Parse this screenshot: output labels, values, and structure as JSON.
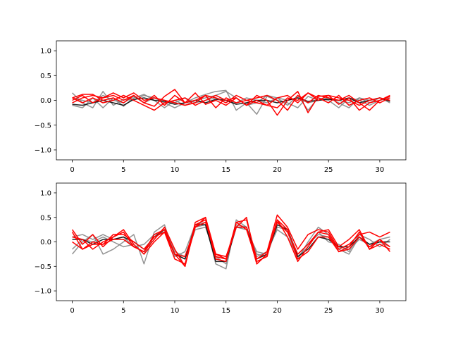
{
  "colors": {
    "gray": "#808080",
    "dark": "#000000",
    "red": "#ff0000",
    "axis": "#000000",
    "background": "#ffffff"
  },
  "chart_data": [
    {
      "type": "line",
      "xlim": [
        -1.55,
        32.55
      ],
      "ylim": [
        -1.2,
        1.2
      ],
      "xticks": [
        0,
        5,
        10,
        15,
        20,
        25,
        30
      ],
      "xtick_labels": [
        "0",
        "5",
        "10",
        "15",
        "20",
        "25",
        "30"
      ],
      "yticks": [
        1.0,
        0.5,
        0.0,
        -0.5,
        -1.0
      ],
      "ytick_labels": [
        "1.0",
        "0.5",
        "0.0",
        "−0.5",
        "−1.0"
      ],
      "grid": false,
      "x": [
        0,
        1,
        2,
        3,
        4,
        5,
        6,
        7,
        8,
        9,
        10,
        11,
        12,
        13,
        14,
        15,
        16,
        17,
        18,
        19,
        20,
        21,
        22,
        23,
        24,
        25,
        26,
        27,
        28,
        29,
        30,
        31
      ],
      "series": [
        {
          "color": "gray",
          "values": [
            0.15,
            -0.05,
            -0.15,
            0.18,
            -0.1,
            0.02,
            0.0,
            0.1,
            0.05,
            -0.05,
            -0.15,
            -0.05,
            0.05,
            0.12,
            0.18,
            0.2,
            -0.2,
            -0.05,
            -0.28,
            0.08,
            0.0,
            -0.05,
            -0.15,
            0.08,
            0.0,
            0.05,
            -0.05,
            -0.15,
            0.05,
            -0.05,
            0.05,
            -0.05
          ]
        },
        {
          "color": "gray",
          "values": [
            -0.1,
            -0.15,
            0.05,
            -0.15,
            0.05,
            -0.12,
            0.05,
            0.12,
            0.0,
            -0.15,
            0.0,
            -0.1,
            0.0,
            0.05,
            0.1,
            0.18,
            0.05,
            -0.1,
            -0.05,
            0.1,
            0.05,
            -0.1,
            0.1,
            -0.2,
            0.05,
            0.0,
            -0.15,
            0.05,
            0.0,
            -0.1,
            0.0,
            0.05
          ]
        },
        {
          "color": "gray",
          "values": [
            0.05,
            0.0,
            -0.05,
            0.1,
            0.0,
            -0.05,
            0.08,
            -0.05,
            0.05,
            0.0,
            -0.05,
            0.05,
            -0.05,
            0.0,
            0.05,
            0.0,
            -0.05,
            0.05,
            0.0,
            -0.05,
            0.05,
            0.0,
            0.05,
            -0.05,
            0.0,
            0.05,
            0.0,
            -0.05,
            0.05,
            0.0,
            0.05,
            0.0
          ]
        },
        {
          "color": "dark",
          "values": [
            -0.08,
            -0.1,
            -0.05,
            0.0,
            -0.05,
            -0.1,
            0.02,
            0.05,
            0.0,
            -0.02,
            -0.08,
            -0.05,
            0.0,
            -0.05,
            0.02,
            0.0,
            -0.08,
            -0.05,
            0.0,
            0.0,
            -0.05,
            0.0,
            0.05,
            -0.02,
            0.0,
            0.02,
            0.0,
            0.05,
            -0.05,
            0.0,
            0.05,
            -0.02
          ]
        },
        {
          "color": "red",
          "values": [
            0.05,
            0.12,
            0.12,
            0.0,
            0.05,
            -0.05,
            0.1,
            -0.05,
            -0.12,
            0.08,
            0.22,
            -0.05,
            0.15,
            -0.08,
            0.0,
            -0.1,
            0.05,
            -0.1,
            0.1,
            0.0,
            -0.3,
            0.0,
            0.18,
            -0.25,
            0.08,
            0.1,
            -0.08,
            0.05,
            -0.2,
            -0.05,
            0.0,
            0.08
          ]
        },
        {
          "color": "red",
          "values": [
            0.0,
            0.1,
            -0.05,
            0.05,
            0.1,
            0.0,
            0.1,
            -0.05,
            0.1,
            -0.1,
            0.1,
            -0.05,
            0.0,
            0.1,
            0.05,
            -0.05,
            0.1,
            0.0,
            0.05,
            0.1,
            0.0,
            -0.2,
            0.1,
            -0.05,
            0.1,
            0.05,
            0.0,
            0.1,
            -0.05,
            -0.2,
            0.0,
            0.1
          ]
        },
        {
          "color": "red",
          "values": [
            -0.05,
            0.05,
            0.1,
            0.05,
            0.15,
            0.05,
            0.15,
            0.0,
            0.05,
            0.0,
            -0.05,
            -0.1,
            -0.05,
            0.1,
            -0.15,
            0.05,
            -0.05,
            0.0,
            -0.05,
            -0.1,
            0.05,
            0.1,
            -0.05,
            0.15,
            0.0,
            0.1,
            0.05,
            0.0,
            -0.1,
            0.0,
            0.05,
            0.0
          ]
        },
        {
          "color": "red",
          "values": [
            0.05,
            -0.05,
            0.05,
            -0.05,
            0.0,
            0.1,
            0.0,
            -0.1,
            -0.2,
            -0.05,
            0.0,
            0.05,
            -0.1,
            0.0,
            0.1,
            0.0,
            0.05,
            -0.1,
            0.0,
            -0.1,
            -0.15,
            0.05,
            0.0,
            0.15,
            0.05,
            -0.05,
            0.1,
            -0.1,
            0.0,
            0.05,
            -0.05,
            0.05
          ]
        }
      ]
    },
    {
      "type": "line",
      "xlim": [
        -1.55,
        32.55
      ],
      "ylim": [
        -1.2,
        1.2
      ],
      "xticks": [
        0,
        5,
        10,
        15,
        20,
        25,
        30
      ],
      "xtick_labels": [
        "0",
        "5",
        "10",
        "15",
        "20",
        "25",
        "30"
      ],
      "yticks": [
        1.0,
        0.5,
        0.0,
        -0.5,
        -1.0
      ],
      "ytick_labels": [
        "1.0",
        "0.5",
        "0.0",
        "−0.5",
        "−1.0"
      ],
      "grid": false,
      "x": [
        0,
        1,
        2,
        3,
        4,
        5,
        6,
        7,
        8,
        9,
        10,
        11,
        12,
        13,
        14,
        15,
        16,
        17,
        18,
        19,
        20,
        21,
        22,
        23,
        24,
        25,
        26,
        27,
        28,
        29,
        30,
        31
      ],
      "series": [
        {
          "color": "gray",
          "values": [
            -0.25,
            0.0,
            0.15,
            -0.25,
            -0.15,
            0.0,
            0.15,
            -0.45,
            0.2,
            0.35,
            -0.3,
            -0.2,
            0.35,
            0.4,
            -0.45,
            -0.55,
            0.45,
            0.3,
            -0.25,
            -0.3,
            0.4,
            0.2,
            -0.35,
            0.0,
            0.3,
            0.15,
            -0.15,
            -0.25,
            0.1,
            -0.1,
            0.0,
            -0.1
          ]
        },
        {
          "color": "gray",
          "values": [
            0.1,
            0.15,
            0.05,
            0.15,
            0.05,
            0.1,
            -0.1,
            -0.05,
            0.15,
            0.25,
            -0.2,
            -0.3,
            0.3,
            0.35,
            -0.35,
            -0.4,
            0.3,
            0.25,
            -0.2,
            -0.25,
            0.3,
            0.25,
            -0.25,
            -0.05,
            0.15,
            0.1,
            -0.1,
            -0.15,
            0.05,
            -0.05,
            0.05,
            0.1
          ]
        },
        {
          "color": "gray",
          "values": [
            -0.15,
            0.05,
            0.0,
            0.1,
            0.0,
            -0.1,
            -0.05,
            -0.25,
            0.15,
            0.2,
            -0.25,
            -0.35,
            0.25,
            0.3,
            -0.3,
            -0.45,
            0.35,
            0.3,
            -0.3,
            -0.2,
            0.25,
            0.1,
            -0.3,
            -0.1,
            0.2,
            0.0,
            -0.05,
            -0.2,
            0.15,
            0.05,
            -0.1,
            0.05
          ]
        },
        {
          "color": "dark",
          "values": [
            0.05,
            0.05,
            -0.05,
            0.05,
            0.05,
            0.1,
            0.0,
            -0.15,
            0.1,
            0.25,
            -0.25,
            -0.35,
            0.35,
            0.35,
            -0.4,
            -0.4,
            0.3,
            0.3,
            -0.35,
            -0.25,
            0.35,
            0.25,
            -0.3,
            -0.15,
            0.1,
            0.05,
            -0.1,
            -0.1,
            0.1,
            -0.05,
            0.0,
            0.0
          ]
        },
        {
          "color": "red",
          "values": [
            0.25,
            -0.05,
            0.15,
            -0.1,
            0.1,
            0.2,
            -0.1,
            -0.2,
            0.05,
            0.3,
            -0.15,
            -0.5,
            0.4,
            0.5,
            -0.25,
            -0.35,
            0.4,
            0.45,
            -0.35,
            -0.2,
            0.55,
            0.3,
            -0.15,
            0.15,
            0.25,
            0.2,
            -0.15,
            -0.05,
            0.15,
            0.2,
            0.1,
            0.2
          ]
        },
        {
          "color": "red",
          "values": [
            0.2,
            -0.15,
            0.0,
            -0.05,
            0.15,
            0.15,
            0.0,
            -0.15,
            0.1,
            0.2,
            -0.35,
            -0.45,
            0.3,
            0.5,
            -0.3,
            -0.35,
            0.3,
            0.5,
            -0.45,
            -0.25,
            0.45,
            0.1,
            -0.4,
            -0.1,
            0.2,
            0.15,
            -0.2,
            -0.1,
            0.2,
            -0.15,
            -0.05,
            -0.15
          ]
        },
        {
          "color": "red",
          "values": [
            0.0,
            -0.15,
            -0.05,
            -0.05,
            0.05,
            0.05,
            -0.1,
            -0.2,
            0.15,
            0.25,
            -0.25,
            -0.5,
            0.35,
            0.45,
            -0.35,
            -0.4,
            0.4,
            0.25,
            -0.4,
            -0.3,
            0.45,
            0.25,
            -0.35,
            -0.2,
            0.1,
            0.1,
            -0.2,
            -0.15,
            0.1,
            -0.1,
            0.05,
            -0.2
          ]
        },
        {
          "color": "red",
          "values": [
            0.1,
            0.05,
            -0.15,
            0.0,
            0.1,
            0.25,
            -0.05,
            -0.25,
            0.0,
            0.2,
            -0.25,
            -0.3,
            0.3,
            0.4,
            -0.25,
            -0.3,
            0.3,
            0.3,
            -0.45,
            -0.25,
            0.4,
            0.2,
            -0.25,
            -0.05,
            0.2,
            0.25,
            -0.1,
            0.05,
            0.25,
            -0.15,
            0.05,
            -0.1
          ]
        }
      ]
    }
  ]
}
